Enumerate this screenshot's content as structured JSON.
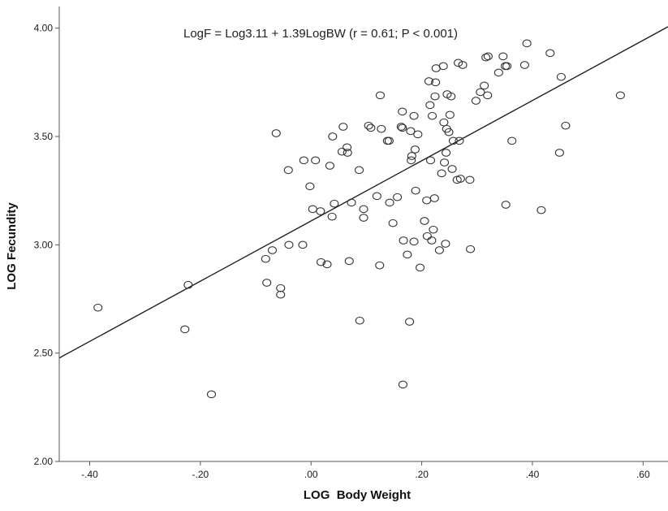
{
  "chart_data": {
    "type": "scatter",
    "title": "",
    "annotation": "LogF = Log3.11 + 1.39LogBW  (r = 0.61; P < 0.001)",
    "xlabel": "LOG  Body Weight",
    "ylabel": "LOG Fecundity",
    "xlim": [
      -0.455,
      0.645
    ],
    "ylim": [
      2.0,
      4.1
    ],
    "x_ticks": [
      -0.4,
      -0.2,
      0.0,
      0.2,
      0.4,
      0.6
    ],
    "x_tick_labels": [
      "-.40",
      "-.20",
      ".00",
      ".20",
      ".40",
      ".60"
    ],
    "y_ticks": [
      2.0,
      2.5,
      3.0,
      3.5,
      4.0
    ],
    "y_tick_labels": [
      "2.00",
      "2.50",
      "3.00",
      "3.50",
      "4.00"
    ],
    "grid": false,
    "fit_line": {
      "intercept": 3.11,
      "slope": 1.39
    },
    "colors": {
      "marker_stroke": "#333333",
      "line": "#222222",
      "axis": "#555555"
    },
    "series": [
      {
        "points": [
          [
            -0.385,
            2.71
          ],
          [
            -0.222,
            2.815
          ],
          [
            -0.228,
            2.61
          ],
          [
            -0.18,
            2.31
          ],
          [
            -0.08,
            2.825
          ],
          [
            -0.082,
            2.935
          ],
          [
            -0.07,
            2.975
          ],
          [
            -0.055,
            2.8
          ],
          [
            -0.055,
            2.77
          ],
          [
            -0.063,
            3.515
          ],
          [
            -0.041,
            3.345
          ],
          [
            -0.04,
            3.0
          ],
          [
            -0.015,
            3.0
          ],
          [
            -0.013,
            3.39
          ],
          [
            -0.002,
            3.27
          ],
          [
            0.003,
            3.165
          ],
          [
            0.008,
            3.39
          ],
          [
            0.017,
            3.155
          ],
          [
            0.018,
            2.92
          ],
          [
            0.029,
            2.91
          ],
          [
            0.034,
            3.365
          ],
          [
            0.038,
            3.13
          ],
          [
            0.039,
            3.5
          ],
          [
            0.042,
            3.19
          ],
          [
            0.056,
            3.43
          ],
          [
            0.058,
            3.545
          ],
          [
            0.065,
            3.45
          ],
          [
            0.066,
            3.425
          ],
          [
            0.069,
            2.925
          ],
          [
            0.073,
            3.195
          ],
          [
            0.087,
            3.345
          ],
          [
            0.088,
            2.65
          ],
          [
            0.095,
            3.165
          ],
          [
            0.095,
            3.125
          ],
          [
            0.104,
            3.55
          ],
          [
            0.108,
            3.54
          ],
          [
            0.119,
            3.225
          ],
          [
            0.124,
            2.905
          ],
          [
            0.125,
            3.69
          ],
          [
            0.127,
            3.535
          ],
          [
            0.138,
            3.48
          ],
          [
            0.141,
            3.48
          ],
          [
            0.142,
            3.195
          ],
          [
            0.148,
            3.1
          ],
          [
            0.156,
            3.22
          ],
          [
            0.163,
            3.545
          ],
          [
            0.165,
            3.54
          ],
          [
            0.165,
            3.615
          ],
          [
            0.167,
            3.02
          ],
          [
            0.166,
            2.355
          ],
          [
            0.174,
            2.955
          ],
          [
            0.178,
            2.645
          ],
          [
            0.18,
            3.525
          ],
          [
            0.181,
            3.39
          ],
          [
            0.182,
            3.41
          ],
          [
            0.186,
            3.595
          ],
          [
            0.186,
            3.015
          ],
          [
            0.188,
            3.44
          ],
          [
            0.189,
            3.25
          ],
          [
            0.193,
            3.51
          ],
          [
            0.197,
            2.895
          ],
          [
            0.205,
            3.11
          ],
          [
            0.209,
            3.205
          ],
          [
            0.21,
            3.04
          ],
          [
            0.213,
            3.755
          ],
          [
            0.215,
            3.645
          ],
          [
            0.216,
            3.39
          ],
          [
            0.218,
            3.02
          ],
          [
            0.219,
            3.595
          ],
          [
            0.221,
            3.07
          ],
          [
            0.223,
            3.215
          ],
          [
            0.224,
            3.685
          ],
          [
            0.225,
            3.75
          ],
          [
            0.226,
            3.815
          ],
          [
            0.232,
            2.975
          ],
          [
            0.236,
            3.33
          ],
          [
            0.239,
            3.825
          ],
          [
            0.24,
            3.565
          ],
          [
            0.241,
            3.38
          ],
          [
            0.243,
            3.005
          ],
          [
            0.244,
            3.425
          ],
          [
            0.245,
            3.535
          ],
          [
            0.246,
            3.695
          ],
          [
            0.249,
            3.52
          ],
          [
            0.251,
            3.6
          ],
          [
            0.253,
            3.685
          ],
          [
            0.255,
            3.35
          ],
          [
            0.257,
            3.48
          ],
          [
            0.264,
            3.3
          ],
          [
            0.266,
            3.84
          ],
          [
            0.268,
            3.48
          ],
          [
            0.27,
            3.305
          ],
          [
            0.274,
            3.83
          ],
          [
            0.287,
            3.3
          ],
          [
            0.288,
            2.98
          ],
          [
            0.298,
            3.665
          ],
          [
            0.306,
            3.705
          ],
          [
            0.313,
            3.735
          ],
          [
            0.316,
            3.865
          ],
          [
            0.319,
            3.69
          ],
          [
            0.32,
            3.87
          ],
          [
            0.339,
            3.795
          ],
          [
            0.347,
            3.87
          ],
          [
            0.351,
            3.825
          ],
          [
            0.352,
            3.185
          ],
          [
            0.354,
            3.825
          ],
          [
            0.363,
            3.48
          ],
          [
            0.386,
            3.83
          ],
          [
            0.39,
            3.93
          ],
          [
            0.416,
            3.16
          ],
          [
            0.432,
            3.885
          ],
          [
            0.449,
            3.425
          ],
          [
            0.452,
            3.775
          ],
          [
            0.46,
            3.55
          ],
          [
            0.559,
            3.69
          ]
        ]
      }
    ]
  }
}
